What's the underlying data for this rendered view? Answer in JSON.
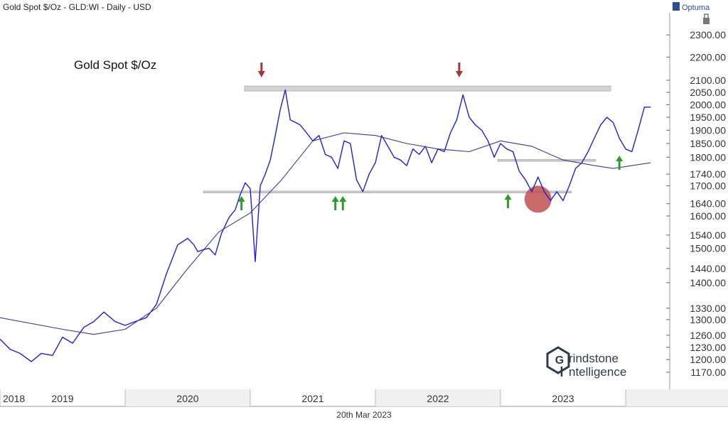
{
  "header": {
    "chart_title": "Gold Spot $/Oz - GLD:WI - Daily - USD",
    "brand": "Optuma"
  },
  "footer": {
    "date": "20th Mar 2023"
  },
  "logo": {
    "line1": "rindstone",
    "line2": "ntelligence"
  },
  "colors": {
    "price_line": "#1f1fd6",
    "moving_average": "#3a3a8c",
    "resistance_band": "#d3d3d3",
    "support_line": "#c8c8c8",
    "up_arrow": "#2e9a2e",
    "down_arrow": "#a23838",
    "highlight_circle": "#c0504d",
    "axis_text": "#333333",
    "background": "#ffffff"
  },
  "chart_data": {
    "type": "line",
    "title": "Gold Spot $/Oz",
    "y_scale": "log",
    "ylim": [
      1150,
      2340
    ],
    "xlim": [
      2018.0,
      2023.6
    ],
    "x_ticks": [
      "2018",
      "2019",
      "2020",
      "2021",
      "2022",
      "2023"
    ],
    "x_tick_values": [
      2018.0,
      2019.0,
      2020.0,
      2021.0,
      2022.0,
      2023.0
    ],
    "y_ticks": [
      2300,
      2200,
      2100,
      2050,
      2000,
      1950,
      1900,
      1850,
      1800,
      1740,
      1700,
      1640,
      1600,
      1540,
      1500,
      1440,
      1400,
      1330,
      1300,
      1260,
      1230,
      1200,
      1170
    ],
    "y_tick_labels": [
      "2300.00",
      "2200.00",
      "2100.00",
      "2050.00",
      "2000.00",
      "1950.00",
      "1900.00",
      "1850.00",
      "1800.00",
      "1740.00",
      "1700.00",
      "1640.00",
      "1600.00",
      "1540.00",
      "1500.00",
      "1440.00",
      "1400.00",
      "1330.00",
      "1300.00",
      "1260.00",
      "1230.00",
      "1200.00",
      "1170.00"
    ],
    "series": [
      {
        "type": "line",
        "x": [
          2018.0,
          2018.08,
          2018.16,
          2018.25,
          2018.33,
          2018.42,
          2018.5,
          2018.58,
          2018.67,
          2018.75,
          2018.83,
          2018.92,
          2019.0,
          2019.08,
          2019.17,
          2019.25,
          2019.33,
          2019.42,
          2019.5,
          2019.55,
          2019.58,
          2019.62,
          2019.67,
          2019.72,
          2019.77,
          2019.83,
          2019.88,
          2019.92,
          2019.96,
          2020.0,
          2020.04,
          2020.08,
          2020.12,
          2020.16,
          2020.2,
          2020.24,
          2020.28,
          2020.32,
          2020.36,
          2020.4,
          2020.45,
          2020.5,
          2020.55,
          2020.6,
          2020.65,
          2020.7,
          2020.75,
          2020.8,
          2020.85,
          2020.9,
          2020.95,
          2021.0,
          2021.05,
          2021.1,
          2021.15,
          2021.2,
          2021.25,
          2021.3,
          2021.35,
          2021.4,
          2021.45,
          2021.5,
          2021.55,
          2021.6,
          2021.65,
          2021.7,
          2021.75,
          2021.8,
          2021.85,
          2021.9,
          2021.95,
          2022.0,
          2022.05,
          2022.1,
          2022.15,
          2022.2,
          2022.25,
          2022.3,
          2022.35,
          2022.4,
          2022.45,
          2022.5,
          2022.55,
          2022.6,
          2022.65,
          2022.7,
          2022.75,
          2022.8,
          2022.85,
          2022.9,
          2022.95,
          2023.0,
          2023.05,
          2023.1,
          2023.15,
          2023.2
        ],
        "y": [
          1250,
          1225,
          1215,
          1195,
          1215,
          1210,
          1255,
          1240,
          1280,
          1295,
          1320,
          1295,
          1285,
          1295,
          1305,
          1340,
          1425,
          1510,
          1530,
          1510,
          1490,
          1495,
          1500,
          1480,
          1545,
          1595,
          1620,
          1670,
          1710,
          1690,
          1460,
          1700,
          1740,
          1790,
          1880,
          1980,
          2060,
          1940,
          1930,
          1920,
          1890,
          1860,
          1880,
          1810,
          1800,
          1760,
          1860,
          1850,
          1720,
          1680,
          1740,
          1780,
          1880,
          1840,
          1800,
          1790,
          1770,
          1830,
          1810,
          1840,
          1780,
          1830,
          1820,
          1890,
          1940,
          2040,
          1950,
          1920,
          1900,
          1860,
          1800,
          1850,
          1830,
          1820,
          1750,
          1720,
          1680,
          1730,
          1680,
          1650,
          1680,
          1650,
          1700,
          1760,
          1780,
          1820,
          1870,
          1920,
          1950,
          1930,
          1870,
          1830,
          1820,
          1900,
          1990,
          1990
        ],
        "approximate": true
      },
      {
        "type": "line",
        "x": [
          2018.0,
          2018.5,
          2018.75,
          2019.0,
          2019.25,
          2019.5,
          2019.75,
          2020.0,
          2020.25,
          2020.5,
          2020.75,
          2021.0,
          2021.25,
          2021.5,
          2021.75,
          2022.0,
          2022.25,
          2022.5,
          2022.75,
          2022.9,
          2023.05,
          2023.2
        ],
        "y": [
          1305,
          1275,
          1262,
          1275,
          1330,
          1440,
          1550,
          1610,
          1720,
          1860,
          1890,
          1880,
          1850,
          1830,
          1820,
          1860,
          1840,
          1790,
          1770,
          1760,
          1770,
          1780
        ]
      }
    ],
    "annotations": {
      "title_label": "Gold Spot $/Oz",
      "resistance_band": [
        2050,
        2070
      ],
      "support_line": 1680,
      "secondary_support": 1790,
      "up_arrows_x": [
        2019.93,
        2020.68,
        2020.74,
        2022.06,
        2022.95
      ],
      "down_arrows_x": [
        2020.09,
        2021.67
      ],
      "highlight_circle": {
        "x": 2022.3,
        "y": 1650
      }
    }
  }
}
